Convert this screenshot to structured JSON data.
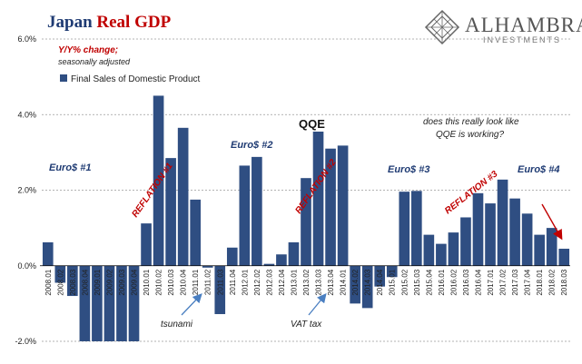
{
  "title": {
    "part1": "Japan ",
    "part2": "Real GDP"
  },
  "logo": {
    "name": "ALHAMBRA",
    "sub": "INVESTMENTS",
    "icon": "alhambra-lattice-icon"
  },
  "colors": {
    "bar": "#2f4e82",
    "title_blue": "#1f3b73",
    "title_red": "#c00000",
    "annotation_red": "#c00000",
    "arrow_blue": "#4a7fc1"
  },
  "chart_data": {
    "type": "bar",
    "title": "Japan Real GDP",
    "subtitle_1": "Y/Y% change;",
    "subtitle_2": "seasonally adjusted",
    "xlabel": "",
    "ylabel": "",
    "ylim": [
      -2.0,
      6.0
    ],
    "yticks": [
      "6.0%",
      "4.0%",
      "2.0%",
      "0.0%",
      "-2.0%"
    ],
    "ytick_values": [
      6,
      4,
      2,
      0,
      -2
    ],
    "grid": "horizontal-dashed",
    "legend": "top-left",
    "series": [
      {
        "name": "Final Sales of Domestic Product",
        "values": [
          0.62,
          -0.45,
          -0.8,
          -2.0,
          -2.0,
          -2.0,
          -2.0,
          -2.0,
          1.12,
          4.5,
          2.85,
          3.65,
          1.75,
          -0.05,
          -1.28,
          0.48,
          2.65,
          2.88,
          0.05,
          0.3,
          0.62,
          2.32,
          3.55,
          3.1,
          3.18,
          -1.0,
          -1.12,
          -0.55,
          -0.3,
          1.96,
          1.98,
          0.82,
          0.58,
          0.88,
          1.28,
          1.92,
          1.65,
          2.28,
          1.78,
          1.38,
          0.82,
          1.0,
          0.45
        ]
      }
    ],
    "categories": [
      "2008.01",
      "2008.02",
      "2008.03",
      "2008.04",
      "2009.01",
      "2009.02",
      "2009.03",
      "2009.04",
      "2010.01",
      "2010.02",
      "2010.03",
      "2010.04",
      "2011.01",
      "2011.02",
      "2011.03",
      "2011.04",
      "2012.01",
      "2012.02",
      "2012.03",
      "2012.04",
      "2013.01",
      "2013.02",
      "2013.03",
      "2013.04",
      "2014.01",
      "2014.02",
      "2014.03",
      "2014.04",
      "2015.01",
      "2015.02",
      "2015.03",
      "2015.04",
      "2016.01",
      "2016.02",
      "2016.03",
      "2016.04",
      "2017.01",
      "2017.02",
      "2017.03",
      "2017.04",
      "2018.01",
      "2018.02",
      "2018.03"
    ],
    "annotations": {
      "euro1": "Euro$ #1",
      "euro2": "Euro$ #2",
      "euro3": "Euro$ #3",
      "euro4": "Euro$ #4",
      "reflation1": "REFLATION #1",
      "reflation2": "REFLATION #2",
      "reflation3": "REFLATION #3",
      "qqe": "QQE",
      "question_line1": "does this really look like",
      "question_line2": "QQE is working?",
      "tsunami": "tsunami",
      "vat": "VAT tax"
    }
  }
}
